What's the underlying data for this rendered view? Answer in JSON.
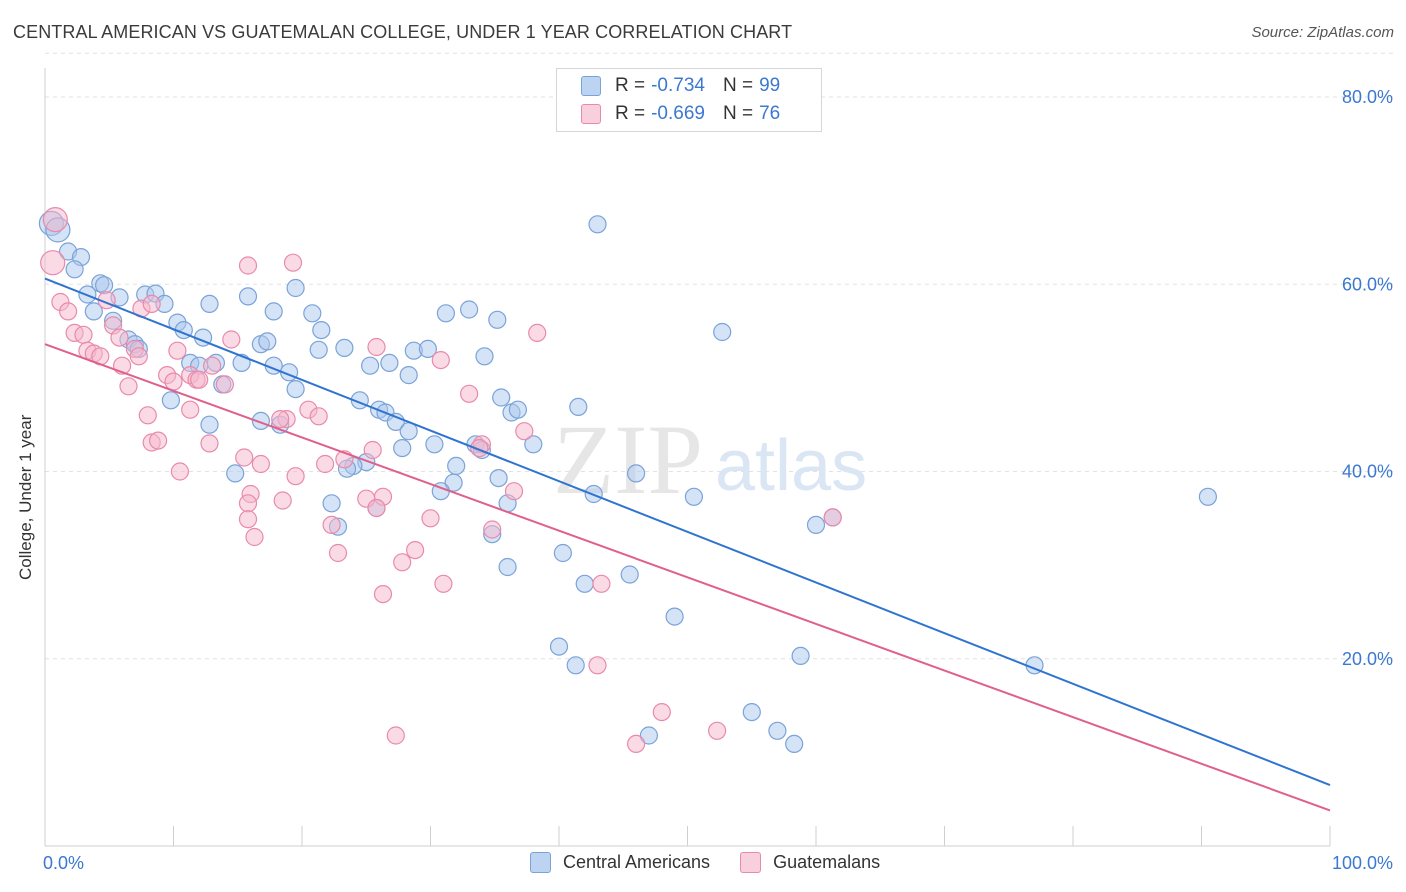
{
  "title": "CENTRAL AMERICAN VS GUATEMALAN COLLEGE, UNDER 1 YEAR CORRELATION CHART",
  "source": "Source: ZipAtlas.com",
  "watermark": {
    "zip": "ZIP",
    "atlas": "atlas"
  },
  "legend": {
    "rows": [
      {
        "r_label": "R =",
        "r_value": "-0.734",
        "n_label": "N =",
        "n_value": "99"
      },
      {
        "r_label": "R =",
        "r_value": "-0.669",
        "n_label": "N =",
        "n_value": "76"
      }
    ]
  },
  "bottom_legend": {
    "series1": "Central Americans",
    "series2": "Guatemalans"
  },
  "colors": {
    "blue_fill": "#a9c7ee",
    "blue_stroke": "#7aa3d8",
    "blue_line": "#2f74d0",
    "pink_fill": "#f5b8cc",
    "pink_stroke": "#e98aab",
    "pink_line": "#e0608c",
    "axis_text": "#3b78d0",
    "grid": "#e2e2e2"
  },
  "chart_data": {
    "type": "scatter",
    "title": "CENTRAL AMERICAN VS GUATEMALAN COLLEGE, UNDER 1 YEAR CORRELATION CHART",
    "xlabel": "",
    "ylabel": "College, Under 1 year",
    "xlim": [
      0,
      100
    ],
    "ylim": [
      0,
      85
    ],
    "x_tick_labels": [
      "0.0%",
      "100.0%"
    ],
    "y_ticks": [
      20,
      40,
      60,
      80
    ],
    "y_tick_labels": [
      "20.0%",
      "40.0%",
      "60.0%",
      "80.0%"
    ],
    "grid": true,
    "legend_placement": "bottom",
    "series": [
      {
        "name": "Central Americans",
        "r": -0.734,
        "n": 99,
        "trend": {
          "x": [
            0,
            100
          ],
          "y": [
            60.6,
            6.5
          ]
        },
        "points": [
          [
            0.5,
            66.5
          ],
          [
            1.0,
            65.8
          ],
          [
            1.8,
            63.5
          ],
          [
            2.8,
            62.9
          ],
          [
            2.3,
            61.6
          ],
          [
            4.3,
            60.1
          ],
          [
            4.6,
            59.9
          ],
          [
            3.3,
            58.9
          ],
          [
            5.8,
            58.6
          ],
          [
            7.8,
            58.9
          ],
          [
            8.6,
            59.0
          ],
          [
            9.3,
            57.9
          ],
          [
            12.8,
            57.9
          ],
          [
            15.8,
            58.7
          ],
          [
            19.5,
            59.6
          ],
          [
            3.8,
            57.1
          ],
          [
            5.3,
            56.1
          ],
          [
            10.3,
            55.9
          ],
          [
            10.8,
            55.1
          ],
          [
            12.3,
            54.3
          ],
          [
            17.8,
            57.1
          ],
          [
            20.8,
            56.9
          ],
          [
            21.5,
            55.1
          ],
          [
            31.2,
            56.9
          ],
          [
            33.0,
            57.3
          ],
          [
            35.2,
            56.2
          ],
          [
            6.5,
            54.1
          ],
          [
            7.0,
            53.6
          ],
          [
            7.3,
            53.1
          ],
          [
            16.8,
            53.6
          ],
          [
            17.3,
            53.9
          ],
          [
            21.3,
            53.0
          ],
          [
            23.3,
            53.2
          ],
          [
            28.7,
            52.9
          ],
          [
            29.8,
            53.1
          ],
          [
            34.2,
            52.3
          ],
          [
            11.3,
            51.6
          ],
          [
            12.0,
            51.3
          ],
          [
            13.3,
            51.6
          ],
          [
            15.3,
            51.6
          ],
          [
            17.8,
            51.3
          ],
          [
            19.0,
            50.6
          ],
          [
            25.3,
            51.3
          ],
          [
            26.8,
            51.6
          ],
          [
            28.3,
            50.3
          ],
          [
            13.8,
            49.3
          ],
          [
            19.5,
            48.8
          ],
          [
            9.8,
            47.6
          ],
          [
            24.5,
            47.6
          ],
          [
            26.0,
            46.6
          ],
          [
            26.5,
            46.3
          ],
          [
            35.5,
            47.9
          ],
          [
            36.3,
            46.3
          ],
          [
            36.8,
            46.6
          ],
          [
            41.5,
            46.9
          ],
          [
            12.8,
            45.0
          ],
          [
            16.8,
            45.4
          ],
          [
            18.3,
            45.0
          ],
          [
            27.3,
            45.3
          ],
          [
            28.3,
            44.3
          ],
          [
            30.3,
            42.9
          ],
          [
            27.8,
            42.5
          ],
          [
            33.5,
            42.9
          ],
          [
            34.0,
            42.3
          ],
          [
            38.0,
            42.9
          ],
          [
            25.0,
            41.0
          ],
          [
            24.0,
            40.6
          ],
          [
            23.5,
            40.3
          ],
          [
            14.8,
            39.8
          ],
          [
            32.0,
            40.6
          ],
          [
            31.8,
            38.8
          ],
          [
            35.3,
            39.3
          ],
          [
            46.0,
            39.8
          ],
          [
            30.8,
            37.9
          ],
          [
            36.0,
            36.6
          ],
          [
            42.7,
            37.6
          ],
          [
            22.3,
            36.6
          ],
          [
            25.8,
            36.1
          ],
          [
            22.8,
            34.1
          ],
          [
            34.8,
            33.3
          ],
          [
            40.3,
            31.3
          ],
          [
            36.0,
            29.8
          ],
          [
            45.5,
            29.0
          ],
          [
            52.7,
            54.9
          ],
          [
            43.0,
            66.4
          ],
          [
            50.5,
            37.3
          ],
          [
            42.0,
            28.0
          ],
          [
            60.0,
            34.3
          ],
          [
            61.3,
            35.1
          ],
          [
            49.0,
            24.5
          ],
          [
            40.0,
            21.3
          ],
          [
            41.3,
            19.3
          ],
          [
            77.0,
            19.3
          ],
          [
            58.8,
            20.3
          ],
          [
            55.0,
            14.3
          ],
          [
            57.0,
            12.3
          ],
          [
            47.0,
            11.8
          ],
          [
            58.3,
            10.9
          ],
          [
            90.5,
            37.3
          ]
        ]
      },
      {
        "name": "Guatemalans",
        "r": -0.669,
        "n": 76,
        "trend": {
          "x": [
            0,
            100
          ],
          "y": [
            53.6,
            3.8
          ]
        },
        "points": [
          [
            0.8,
            66.9
          ],
          [
            0.6,
            62.3
          ],
          [
            1.2,
            58.1
          ],
          [
            1.8,
            57.1
          ],
          [
            15.8,
            62.0
          ],
          [
            19.3,
            62.3
          ],
          [
            4.8,
            58.3
          ],
          [
            7.5,
            57.4
          ],
          [
            8.3,
            57.9
          ],
          [
            2.3,
            54.8
          ],
          [
            3.0,
            54.6
          ],
          [
            5.3,
            55.6
          ],
          [
            3.3,
            52.9
          ],
          [
            3.8,
            52.6
          ],
          [
            4.3,
            52.3
          ],
          [
            5.8,
            54.3
          ],
          [
            14.5,
            54.1
          ],
          [
            25.8,
            53.3
          ],
          [
            38.3,
            54.8
          ],
          [
            7.0,
            53.1
          ],
          [
            7.3,
            52.3
          ],
          [
            6.0,
            51.3
          ],
          [
            10.3,
            52.9
          ],
          [
            11.3,
            50.3
          ],
          [
            11.8,
            49.8
          ],
          [
            13.0,
            51.3
          ],
          [
            30.8,
            51.9
          ],
          [
            9.5,
            50.3
          ],
          [
            10.0,
            49.6
          ],
          [
            12.0,
            49.8
          ],
          [
            14.0,
            49.3
          ],
          [
            8.0,
            46.0
          ],
          [
            11.3,
            46.6
          ],
          [
            6.5,
            49.1
          ],
          [
            20.5,
            46.6
          ],
          [
            18.8,
            45.6
          ],
          [
            18.3,
            45.6
          ],
          [
            21.3,
            45.9
          ],
          [
            33.0,
            48.3
          ],
          [
            8.3,
            43.1
          ],
          [
            8.8,
            43.3
          ],
          [
            12.8,
            43.0
          ],
          [
            23.3,
            41.3
          ],
          [
            25.5,
            42.3
          ],
          [
            34.0,
            42.9
          ],
          [
            33.8,
            42.5
          ],
          [
            37.3,
            44.3
          ],
          [
            15.5,
            41.5
          ],
          [
            16.8,
            40.8
          ],
          [
            21.8,
            40.8
          ],
          [
            10.5,
            40.0
          ],
          [
            19.5,
            39.5
          ],
          [
            16.0,
            37.6
          ],
          [
            15.8,
            36.6
          ],
          [
            18.5,
            36.9
          ],
          [
            26.3,
            37.3
          ],
          [
            25.0,
            37.1
          ],
          [
            36.5,
            37.9
          ],
          [
            25.8,
            36.1
          ],
          [
            22.3,
            34.3
          ],
          [
            15.8,
            34.9
          ],
          [
            30.0,
            35.0
          ],
          [
            34.8,
            33.8
          ],
          [
            16.3,
            33.0
          ],
          [
            22.8,
            31.3
          ],
          [
            28.8,
            31.6
          ],
          [
            27.8,
            30.3
          ],
          [
            31.0,
            28.0
          ],
          [
            26.3,
            26.9
          ],
          [
            43.3,
            28.0
          ],
          [
            61.3,
            35.1
          ],
          [
            43.0,
            19.3
          ],
          [
            48.0,
            14.3
          ],
          [
            52.3,
            12.3
          ],
          [
            46.0,
            10.9
          ],
          [
            27.3,
            11.8
          ]
        ]
      }
    ]
  }
}
